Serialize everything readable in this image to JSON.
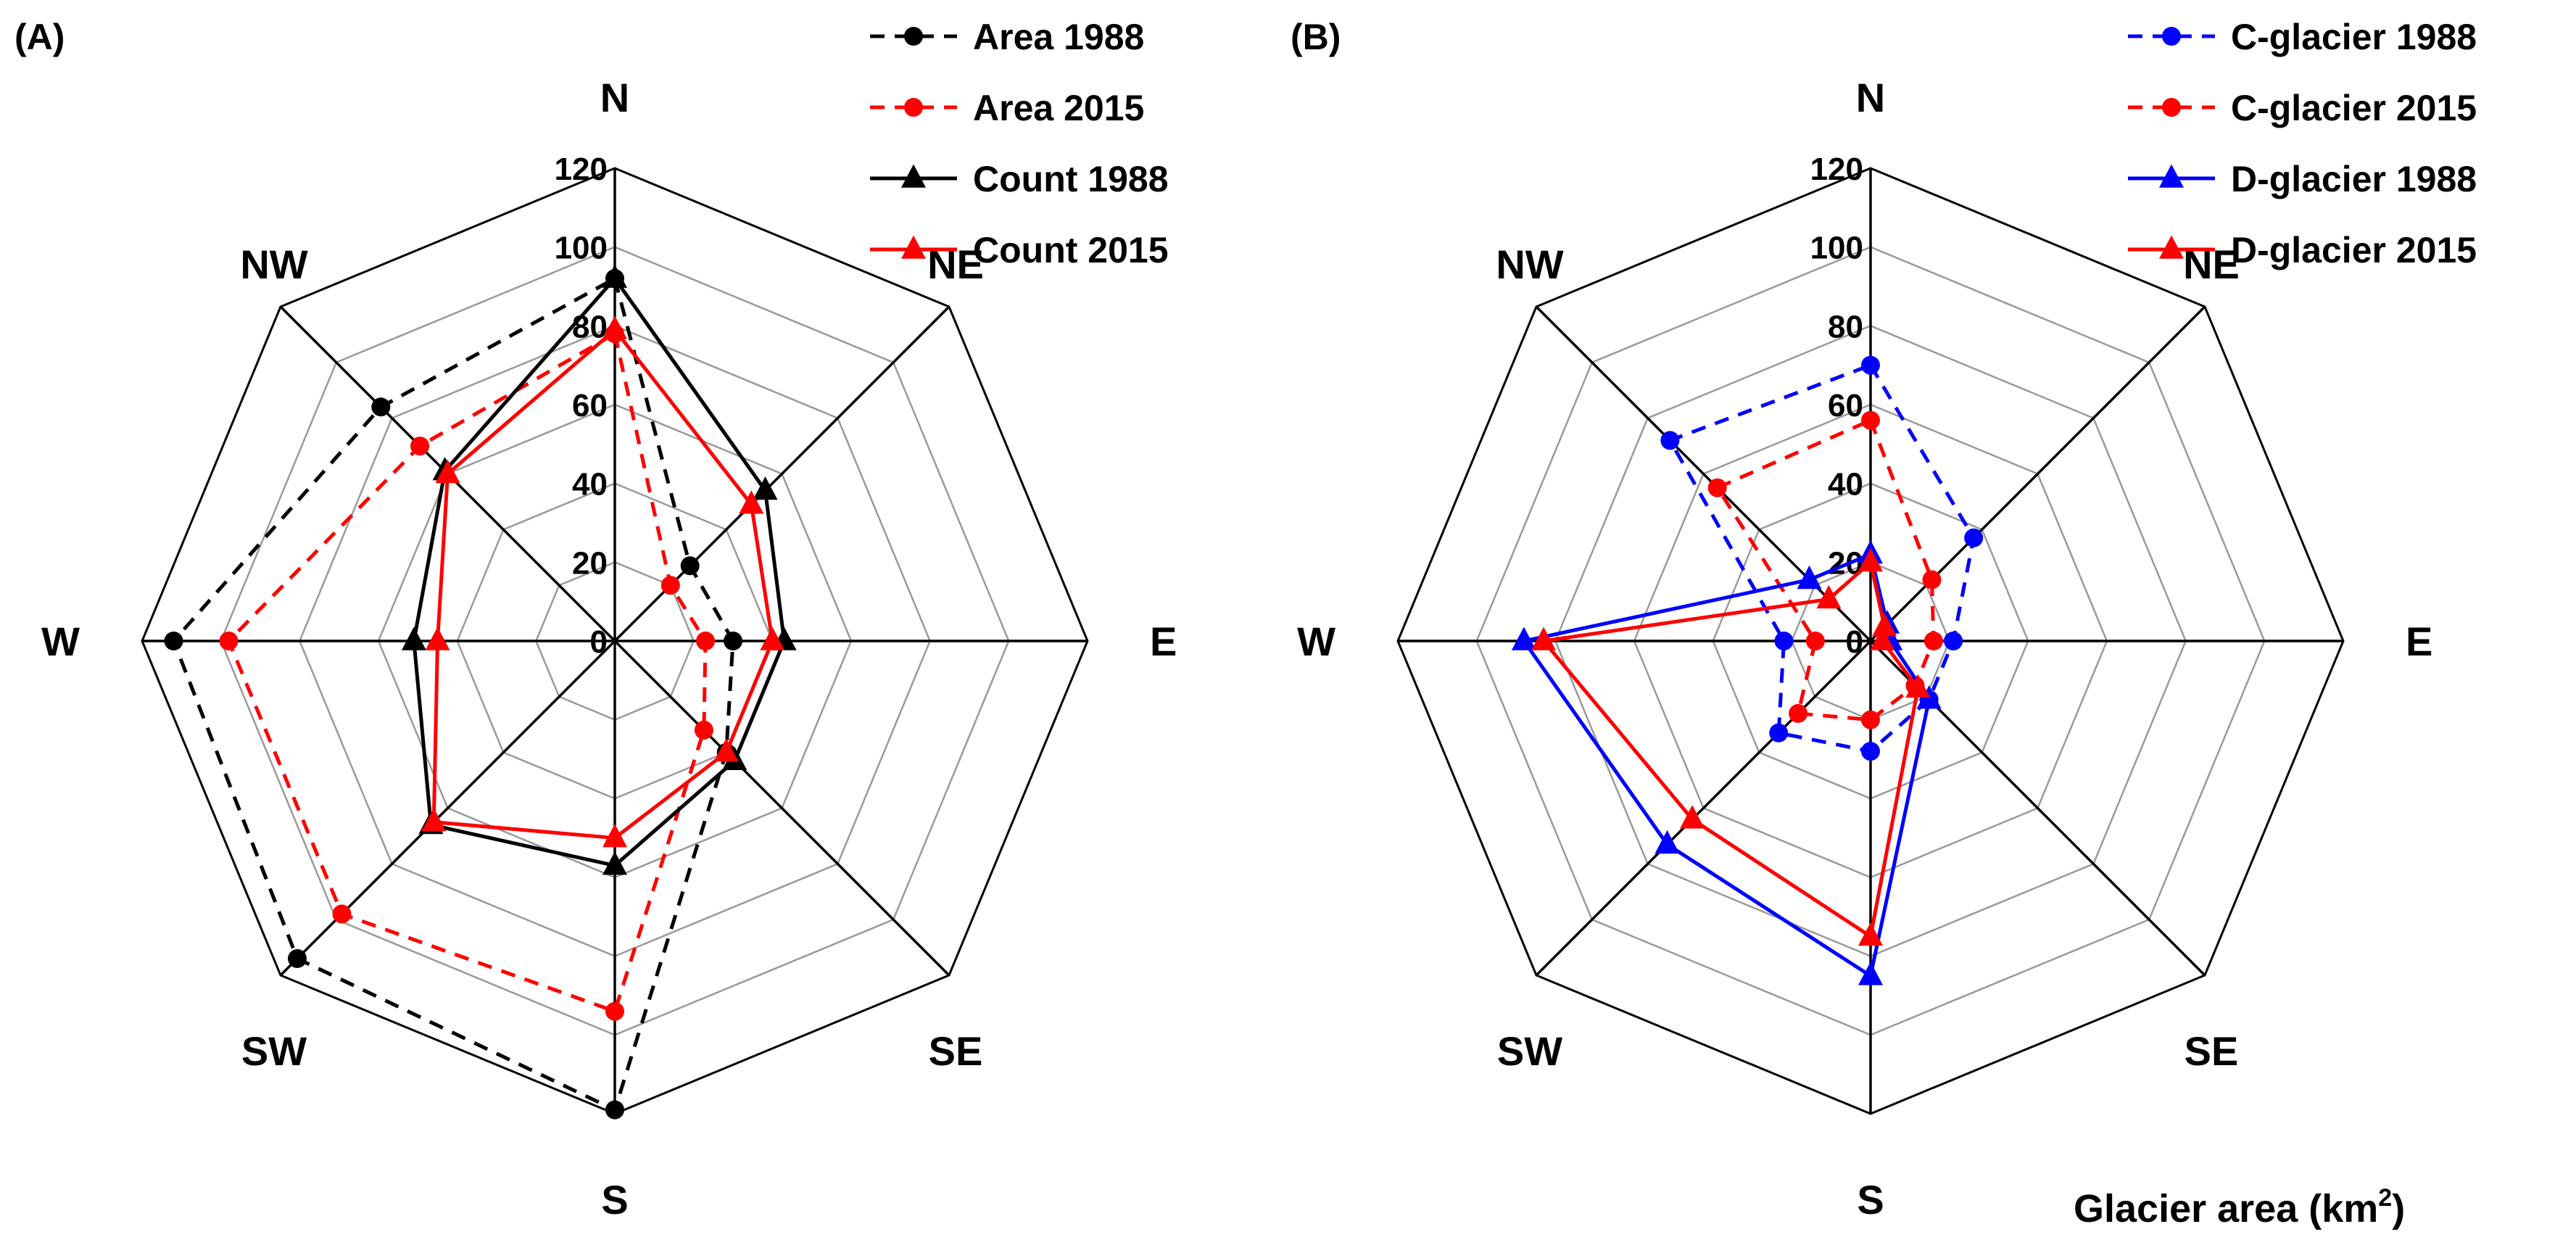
{
  "chart_data": [
    {
      "type": "radar",
      "panel_label": "(A)",
      "directions": [
        "N",
        "NE",
        "E",
        "SE",
        "S",
        "SW",
        "W",
        "NW"
      ],
      "rlim": [
        0,
        120
      ],
      "rticks": [
        "0",
        "20",
        "40",
        "60",
        "80",
        "100",
        "120"
      ],
      "series": [
        {
          "name": "Area 1988",
          "color": "#000000",
          "dashed": true,
          "marker": "circle",
          "values": [
            92,
            27,
            30,
            40,
            119,
            114,
            112,
            84
          ]
        },
        {
          "name": "Area 2015",
          "color": "#ff0000",
          "dashed": true,
          "marker": "circle",
          "values": [
            78,
            20,
            23,
            32,
            94,
            98,
            98,
            70
          ]
        },
        {
          "name": "Count 1988",
          "color": "#000000",
          "dashed": false,
          "marker": "triangle",
          "values": [
            92,
            54,
            43,
            43,
            57,
            66,
            51,
            61
          ]
        },
        {
          "name": "Count 2015",
          "color": "#ff0000",
          "dashed": false,
          "marker": "triangle",
          "values": [
            79,
            49,
            40,
            40,
            50,
            65,
            45,
            60
          ]
        }
      ]
    },
    {
      "type": "radar",
      "panel_label": "(B)",
      "directions": [
        "N",
        "NE",
        "E",
        "SE",
        "S",
        "SW",
        "W",
        "NW"
      ],
      "rlim": [
        0,
        120
      ],
      "rticks": [
        "0",
        "20",
        "40",
        "60",
        "80",
        "100",
        "120"
      ],
      "series": [
        {
          "name": "C-glacier 1988",
          "color": "#0000ff",
          "dashed": true,
          "marker": "circle",
          "values": [
            70,
            37,
            21,
            21,
            28,
            33,
            22,
            72
          ]
        },
        {
          "name": "C-glacier 2015",
          "color": "#ff0000",
          "dashed": true,
          "marker": "circle",
          "values": [
            56,
            22,
            16,
            16,
            20,
            26,
            14,
            55
          ]
        },
        {
          "name": "D-glacier 1988",
          "color": "#0000ff",
          "dashed": false,
          "marker": "triangle",
          "values": [
            22,
            6,
            5,
            21,
            85,
            73,
            88,
            22
          ]
        },
        {
          "name": "D-glacier 2015",
          "color": "#ff0000",
          "dashed": false,
          "marker": "triangle",
          "values": [
            20,
            5,
            3,
            17,
            75,
            64,
            83,
            15
          ]
        }
      ]
    }
  ],
  "footer_label": "Glacier area (km",
  "footer_superscript": "2",
  "footer_close": ")"
}
